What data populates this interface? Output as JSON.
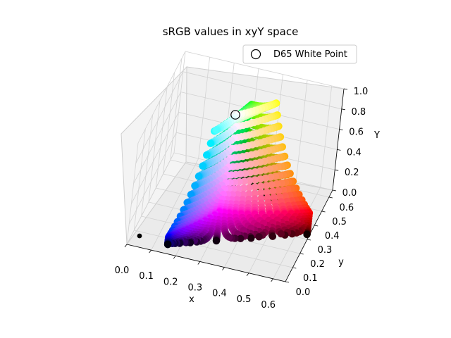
{
  "chart_data": {
    "type": "scatter",
    "subtype": "3d",
    "title": "sRGB values in xyY space",
    "xlabel": "x",
    "ylabel": "y",
    "zlabel": "Y",
    "xlim": [
      0.0,
      0.65
    ],
    "ylim": [
      0.0,
      0.65
    ],
    "zlim": [
      0.0,
      1.0
    ],
    "x_ticks": [
      "0.0",
      "0.1",
      "0.2",
      "0.3",
      "0.4",
      "0.5",
      "0.6"
    ],
    "y_ticks": [
      "0.0",
      "0.1",
      "0.2",
      "0.3",
      "0.4",
      "0.5",
      "0.6"
    ],
    "z_ticks": [
      "0.0",
      "0.2",
      "0.4",
      "0.6",
      "0.8",
      "1.0"
    ],
    "grid": true,
    "legend_placement": "top-right",
    "series": [
      {
        "name": "D65 White Point",
        "marker": "open-circle",
        "points": [
          {
            "x": 0.3127,
            "y": 0.329,
            "Y": 1.0
          }
        ]
      },
      {
        "marker": "filled-circle",
        "color_encoding": "sRGB color of each sample",
        "gamut_vertices": {
          "red": {
            "x": 0.64,
            "y": 0.33
          },
          "green": {
            "x": 0.3,
            "y": 0.6
          },
          "blue": {
            "x": 0.15,
            "y": 0.06
          },
          "black": {
            "x": 0.0,
            "y": 0.0,
            "Y": 0.0
          }
        }
      }
    ]
  },
  "colors": {
    "pane": "#f2f2f2",
    "grid": "#d2d2d2",
    "black_point": "#000000"
  }
}
